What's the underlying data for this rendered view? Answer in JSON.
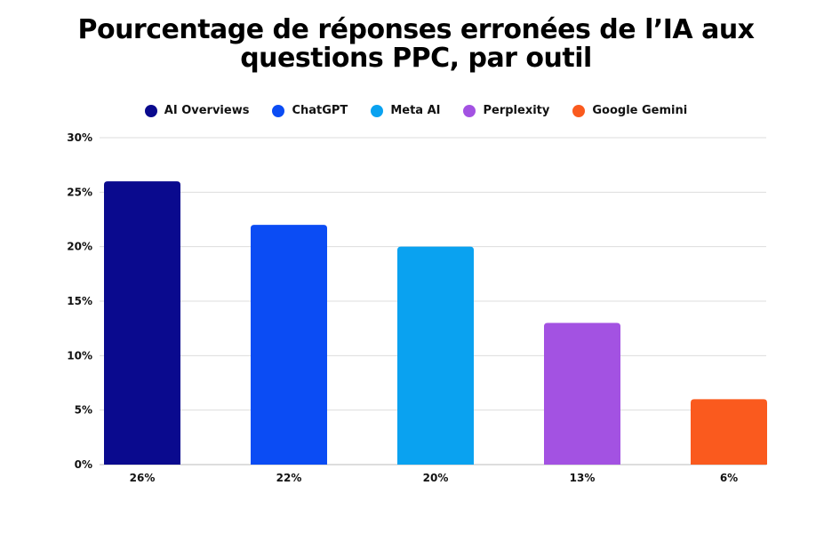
{
  "chart_data": {
    "type": "bar",
    "title": "Pourcentage de réponses erronées de l’IA aux questions PPC, par outil",
    "title_lines": [
      "Pourcentage de réponses erronées de l’IA aux",
      "questions PPC, par outil"
    ],
    "categories": [
      "AI Overviews",
      "ChatGPT",
      "Meta AI",
      "Perplexity",
      "Google Gemini"
    ],
    "values": [
      26,
      22,
      20,
      13,
      6
    ],
    "data_labels": [
      "26%",
      "22%",
      "20%",
      "13%",
      "6%"
    ],
    "colors": [
      "#0a0a8e",
      "#0b4cf4",
      "#0aa2f0",
      "#a352e2",
      "#fa5a1e"
    ],
    "xlabel": "",
    "ylabel": "",
    "ylim": [
      0,
      30
    ],
    "yticks": [
      0,
      5,
      10,
      15,
      20,
      25,
      30
    ],
    "ytick_labels": [
      "0%",
      "5%",
      "10%",
      "15%",
      "20%",
      "25%",
      "30%"
    ],
    "grid": true,
    "legend_position": "top-center"
  }
}
